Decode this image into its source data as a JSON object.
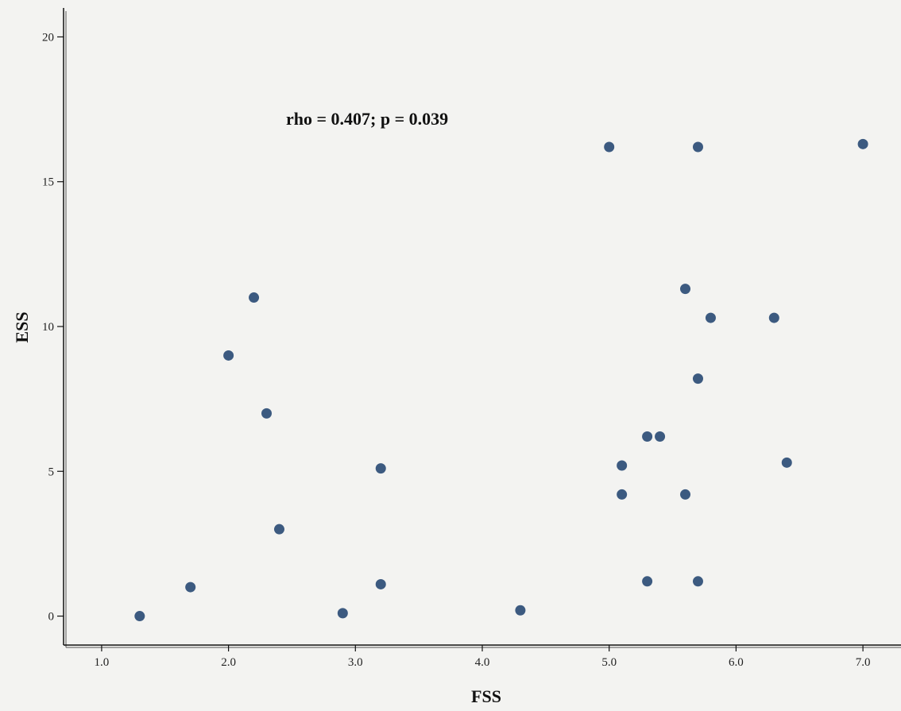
{
  "chart_data": {
    "type": "scatter",
    "title": "",
    "xlabel": "FSS",
    "ylabel": "ESS",
    "xlim": [
      0.7,
      7.3
    ],
    "ylim": [
      -1,
      21
    ],
    "x_ticks": [
      "1.0",
      "2.0",
      "3.0",
      "4.0",
      "5.0",
      "6.0",
      "7.0"
    ],
    "y_ticks": [
      "0",
      "5",
      "10",
      "15",
      "20"
    ],
    "annotation": "rho = 0.407; p = 0.039",
    "grid": false,
    "legend": "none",
    "marker_color": "#3c5a80",
    "points": [
      {
        "x": 1.3,
        "y": 0
      },
      {
        "x": 1.7,
        "y": 1
      },
      {
        "x": 2.0,
        "y": 9
      },
      {
        "x": 2.2,
        "y": 11
      },
      {
        "x": 2.3,
        "y": 7
      },
      {
        "x": 2.4,
        "y": 3
      },
      {
        "x": 2.9,
        "y": 0.1
      },
      {
        "x": 3.2,
        "y": 5.1
      },
      {
        "x": 3.2,
        "y": 1.1
      },
      {
        "x": 4.3,
        "y": 0.2
      },
      {
        "x": 5.0,
        "y": 16.2
      },
      {
        "x": 5.1,
        "y": 5.2
      },
      {
        "x": 5.1,
        "y": 4.2
      },
      {
        "x": 5.3,
        "y": 6.2
      },
      {
        "x": 5.4,
        "y": 6.2
      },
      {
        "x": 5.3,
        "y": 1.2
      },
      {
        "x": 5.6,
        "y": 11.3
      },
      {
        "x": 5.6,
        "y": 4.2
      },
      {
        "x": 5.7,
        "y": 16.2
      },
      {
        "x": 5.7,
        "y": 8.2
      },
      {
        "x": 5.7,
        "y": 1.2
      },
      {
        "x": 5.8,
        "y": 10.3
      },
      {
        "x": 6.3,
        "y": 10.3
      },
      {
        "x": 6.4,
        "y": 5.3
      },
      {
        "x": 7.0,
        "y": 16.3
      }
    ]
  }
}
